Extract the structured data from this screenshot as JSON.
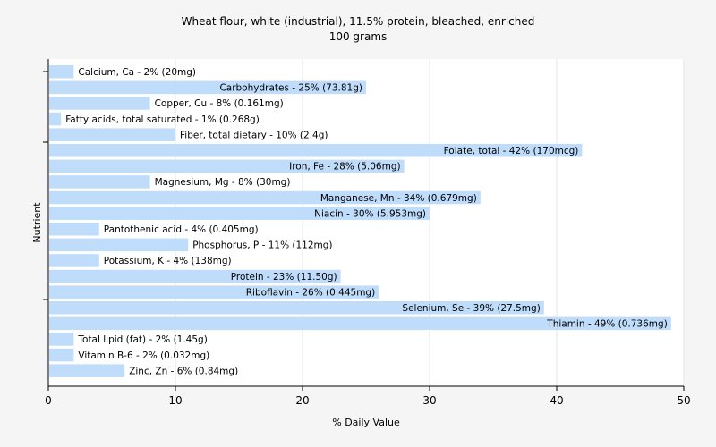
{
  "chart_data": {
    "type": "bar",
    "orientation": "horizontal",
    "title": "Wheat flour, white (industrial), 11.5% protein, bleached, enriched",
    "subtitle": "100 grams",
    "xlabel": "% Daily Value",
    "ylabel": "Nutrient",
    "xlim": [
      0,
      50
    ],
    "xticks": [
      0,
      10,
      20,
      30,
      40,
      50
    ],
    "grid": true,
    "categories": [
      "Calcium, Ca",
      "Carbohydrates",
      "Copper, Cu",
      "Fatty acids, total saturated",
      "Fiber, total dietary",
      "Folate, total",
      "Iron, Fe",
      "Magnesium, Mg",
      "Manganese, Mn",
      "Niacin",
      "Pantothenic acid",
      "Phosphorus, P",
      "Potassium, K",
      "Protein",
      "Riboflavin",
      "Selenium, Se",
      "Thiamin",
      "Total lipid (fat)",
      "Vitamin B-6",
      "Zinc, Zn"
    ],
    "values": [
      2,
      25,
      8,
      1,
      10,
      42,
      28,
      8,
      34,
      30,
      4,
      11,
      4,
      23,
      26,
      39,
      49,
      2,
      2,
      6
    ],
    "labels": [
      "Calcium, Ca - 2% (20mg)",
      "Carbohydrates - 25% (73.81g)",
      "Copper, Cu - 8% (0.161mg)",
      "Fatty acids, total saturated - 1% (0.268g)",
      "Fiber, total dietary - 10% (2.4g)",
      "Folate, total - 42% (170mcg)",
      "Iron, Fe - 28% (5.06mg)",
      "Magnesium, Mg - 8% (30mg)",
      "Manganese, Mn - 34% (0.679mg)",
      "Niacin - 30% (5.953mg)",
      "Pantothenic acid - 4% (0.405mg)",
      "Phosphorus, P - 11% (112mg)",
      "Potassium, K - 4% (138mg)",
      "Protein - 23% (11.50g)",
      "Riboflavin - 26% (0.445mg)",
      "Selenium, Se - 39% (27.5mg)",
      "Thiamin - 49% (0.736mg)",
      "Total lipid (fat) - 2% (1.45g)",
      "Vitamin B-6 - 2% (0.032mg)",
      "Zinc, Zn - 6% (0.84mg)"
    ],
    "colors": {
      "bar": "#bfdcfb",
      "background": "#f5f5f5",
      "plot_background": "#ffffff",
      "grid": "#e6e6e6",
      "axis": "#000000",
      "text": "#000000"
    }
  }
}
